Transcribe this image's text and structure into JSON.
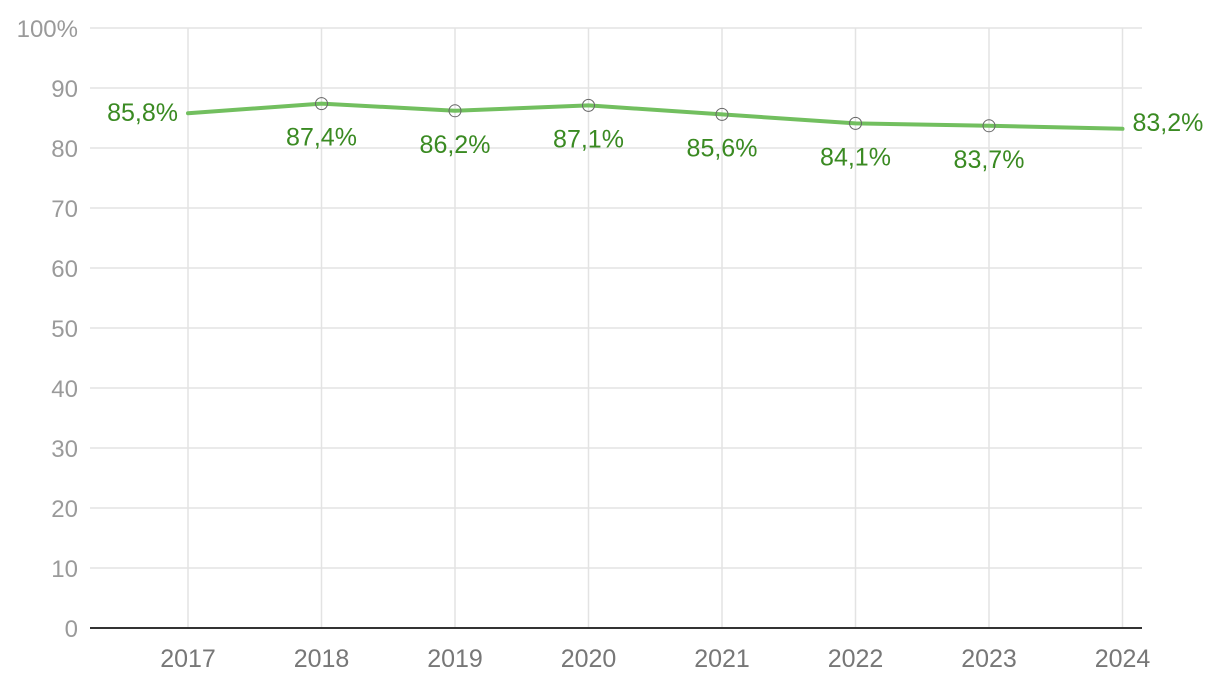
{
  "chart_data": {
    "type": "line",
    "x": [
      "2017",
      "2018",
      "2019",
      "2020",
      "2021",
      "2022",
      "2023",
      "2024"
    ],
    "series": [
      {
        "values": [
          85.8,
          87.4,
          86.2,
          87.1,
          85.6,
          84.1,
          83.7,
          83.2
        ],
        "labels": [
          "85,8%",
          "87,4%",
          "86,2%",
          "87,1%",
          "85,6%",
          "84,1%",
          "83,7%",
          "83,2%"
        ]
      }
    ],
    "yticks": [
      {
        "value": 0,
        "label": "0"
      },
      {
        "value": 10,
        "label": "10"
      },
      {
        "value": 20,
        "label": "20"
      },
      {
        "value": 30,
        "label": "30"
      },
      {
        "value": 40,
        "label": "40"
      },
      {
        "value": 50,
        "label": "50"
      },
      {
        "value": 60,
        "label": "60"
      },
      {
        "value": 70,
        "label": "70"
      },
      {
        "value": 80,
        "label": "80"
      },
      {
        "value": 90,
        "label": "90"
      },
      {
        "value": 100,
        "label": "100%"
      }
    ],
    "ylim": [
      0,
      100
    ],
    "grid": true,
    "legend": "none",
    "title": "",
    "xlabel": "",
    "ylabel": "",
    "colors": {
      "line": "#72bf5f",
      "label": "#3a8a22",
      "marker_stroke": "#666666"
    }
  }
}
